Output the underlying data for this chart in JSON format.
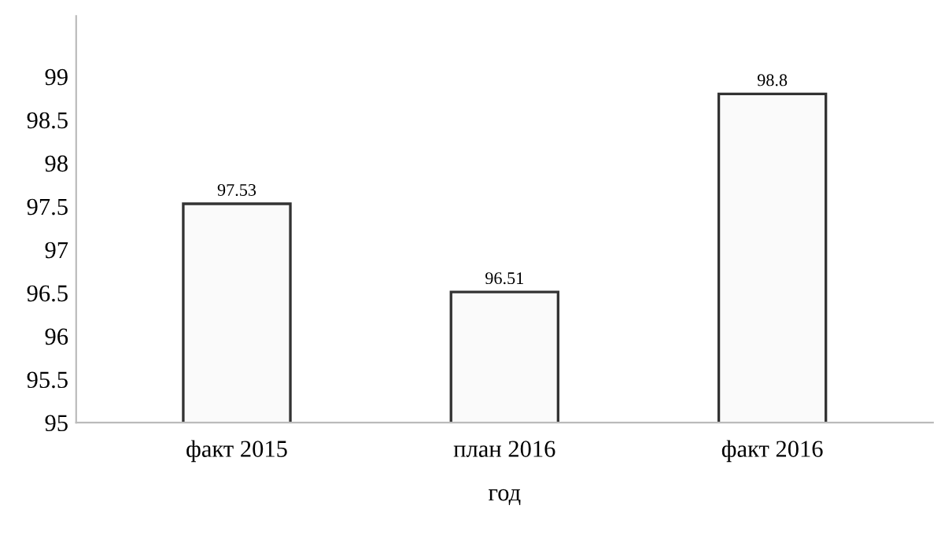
{
  "chart_data": {
    "type": "bar",
    "xlabel": "год",
    "categories": [
      "факт 2015",
      "план 2016",
      "факт 2016"
    ],
    "values": [
      97.53,
      96.51,
      98.8
    ],
    "color": "#fafafa",
    "ylim": [
      95,
      99.7
    ],
    "yticks": [
      95,
      95.5,
      96,
      96.5,
      97,
      97.5,
      98,
      98.5,
      99
    ],
    "data_labels": true,
    "grid": false
  }
}
